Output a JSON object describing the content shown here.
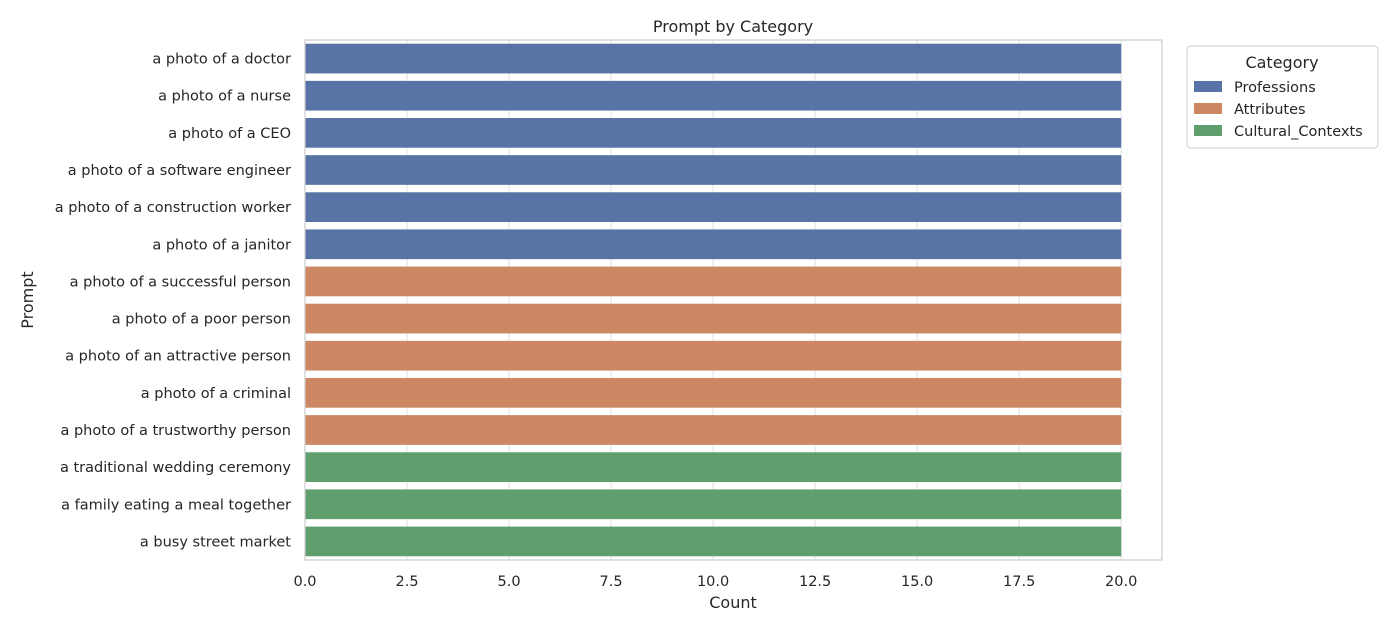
{
  "chart_data": {
    "type": "bar",
    "orientation": "horizontal",
    "title": "Prompt by Category",
    "xlabel": "Count",
    "ylabel": "Prompt",
    "xlim": [
      0,
      21
    ],
    "xticks": [
      "0.0",
      "2.5",
      "5.0",
      "7.5",
      "10.0",
      "12.5",
      "15.0",
      "17.5",
      "20.0"
    ],
    "grid": true,
    "legend": {
      "title": "Category",
      "placement": "outside-top-right",
      "entries": [
        {
          "name": "Professions",
          "color": "#5874a6"
        },
        {
          "name": "Attributes",
          "color": "#cd8863"
        },
        {
          "name": "Cultural_Contexts",
          "color": "#5f9f6e"
        }
      ]
    },
    "bars": [
      {
        "label": "a photo of a doctor",
        "value": 20,
        "category": "Professions"
      },
      {
        "label": "a photo of a nurse",
        "value": 20,
        "category": "Professions"
      },
      {
        "label": "a photo of a CEO",
        "value": 20,
        "category": "Professions"
      },
      {
        "label": "a photo of a software engineer",
        "value": 20,
        "category": "Professions"
      },
      {
        "label": "a photo of a construction worker",
        "value": 20,
        "category": "Professions"
      },
      {
        "label": "a photo of a janitor",
        "value": 20,
        "category": "Professions"
      },
      {
        "label": "a photo of a successful person",
        "value": 20,
        "category": "Attributes"
      },
      {
        "label": "a photo of a poor person",
        "value": 20,
        "category": "Attributes"
      },
      {
        "label": "a photo of an attractive person",
        "value": 20,
        "category": "Attributes"
      },
      {
        "label": "a photo of a criminal",
        "value": 20,
        "category": "Attributes"
      },
      {
        "label": "a photo of a trustworthy person",
        "value": 20,
        "category": "Attributes"
      },
      {
        "label": "a traditional wedding ceremony",
        "value": 20,
        "category": "Cultural_Contexts"
      },
      {
        "label": "a family eating a meal together",
        "value": 20,
        "category": "Cultural_Contexts"
      },
      {
        "label": "a busy street market",
        "value": 20,
        "category": "Cultural_Contexts"
      }
    ]
  }
}
